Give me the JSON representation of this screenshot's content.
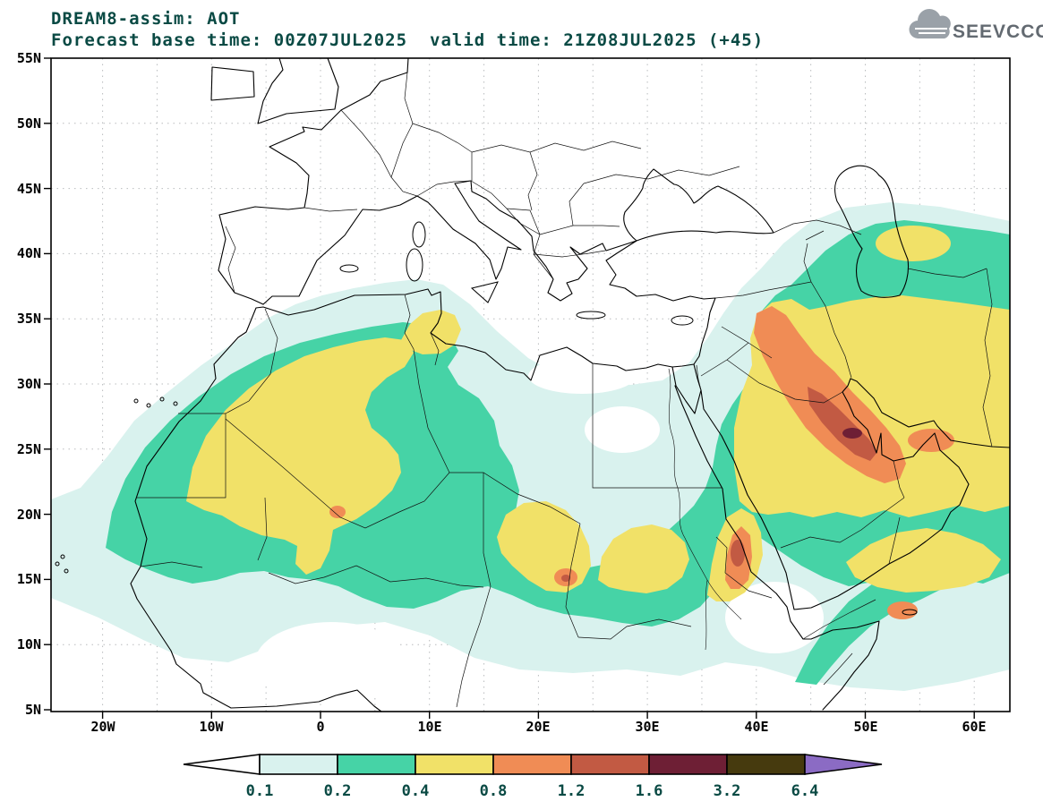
{
  "header": {
    "title": "DREAM8-assim: AOT",
    "base_time": "For​ecast base time: 00Z07JUL2025",
    "valid_time": "valid time: 21Z08JUL2025 (+45)"
  },
  "logo": {
    "text": "SEEVCCC"
  },
  "axes": {
    "lat_labels": [
      "55N",
      "50N",
      "45N",
      "40N",
      "35N",
      "30N",
      "25N",
      "20N",
      "15N",
      "10N",
      "5N"
    ],
    "lon_labels": [
      "20W",
      "10W",
      "0",
      "10E",
      "20E",
      "30E",
      "40E",
      "50E",
      "60E"
    ]
  },
  "colorbar": {
    "labels": [
      "0.1",
      "0.2",
      "0.4",
      "0.8",
      "1.2",
      "1.6",
      "3.2",
      "6.4"
    ],
    "colors": {
      "below": "#ffffff",
      "c1": "#d9f2ee",
      "c2": "#46d3a6",
      "c3": "#f1e168",
      "c4": "#f08c55",
      "c5": "#c25a43",
      "c6": "#6e1f35",
      "c7": "#463a0e",
      "above": "#8b6bc4"
    }
  },
  "text_colors": {
    "header": "#0a4a44",
    "axis": "#000000",
    "colorbar_labels": "#0a4a44",
    "logo": "#636a71"
  }
}
